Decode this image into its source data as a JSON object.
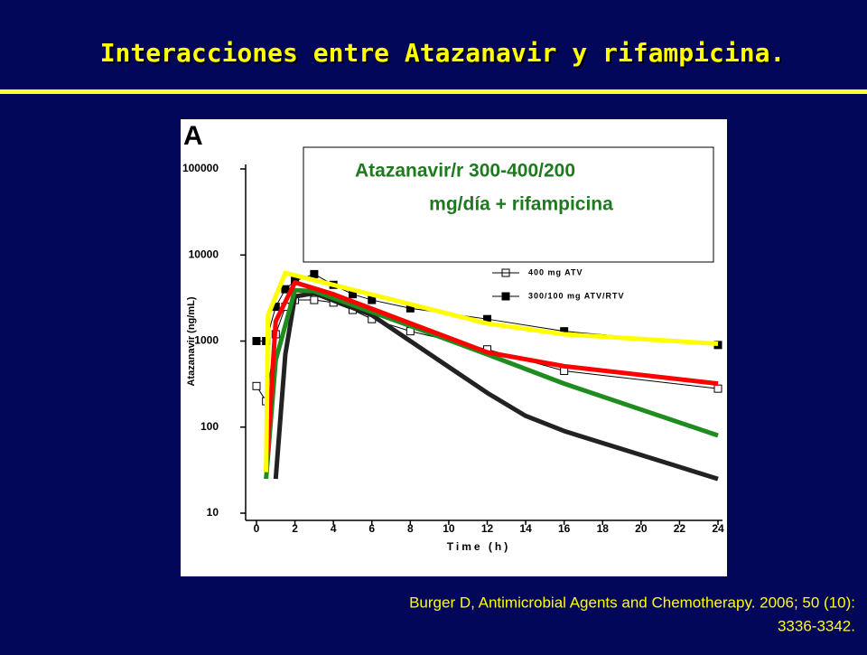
{
  "chart_data": {
    "type": "line",
    "title": "Interacciones entre Atazanavir  y rifampicina.",
    "panel_label": "A",
    "annotation": [
      "Atazanavir/r 300-400/200",
      "mg/día + rifampicina"
    ],
    "source": [
      "Burger D, Antimicrobial Agents and Chemotherapy. 2006; 50 (10):",
      "3336-3342."
    ],
    "x_label": "Time (h)",
    "y_label": "Atazanavir (ng/mL)",
    "log_y": true,
    "xlim": [
      0,
      24
    ],
    "xticks": [
      0,
      2,
      4,
      6,
      8,
      10,
      12,
      14,
      16,
      18,
      20,
      22,
      24
    ],
    "ylim": [
      10,
      100000
    ],
    "yticks": [
      10,
      100,
      1000,
      10000,
      100000
    ],
    "series": [
      {
        "name": "400 mg ATV",
        "marker": "open-square",
        "color": "#000000",
        "x": [
          0,
          0.5,
          1,
          1.5,
          2,
          3,
          4,
          5,
          6,
          8,
          12,
          16,
          24
        ],
        "values": [
          300,
          200,
          1200,
          2500,
          3000,
          3000,
          2800,
          2300,
          1800,
          1300,
          800,
          450,
          280
        ]
      },
      {
        "name": "300/100 mg ATV/RTV",
        "marker": "filled-square",
        "color": "#000000",
        "x": [
          0,
          0.5,
          1,
          1.5,
          2,
          3,
          4,
          5,
          6,
          8,
          12,
          16,
          24
        ],
        "values": [
          1000,
          1000,
          2500,
          4000,
          5000,
          6000,
          4500,
          3500,
          3000,
          2400,
          1800,
          1300,
          900
        ]
      },
      {
        "color": "#222222",
        "x": [
          1,
          1.5,
          2,
          3,
          6,
          8,
          12,
          14,
          16,
          24
        ],
        "values": [
          25,
          700,
          3300,
          3600,
          2000,
          1000,
          250,
          135,
          90,
          25
        ]
      },
      {
        "color": "#1e8c1e",
        "x": [
          0.5,
          1,
          2,
          3,
          8,
          12,
          16,
          24
        ],
        "values": [
          25,
          600,
          3900,
          3800,
          1500,
          700,
          320,
          80
        ]
      },
      {
        "color": "#ff0000",
        "x": [
          0.5,
          1,
          2,
          4,
          12,
          16,
          24
        ],
        "values": [
          30,
          1700,
          4800,
          3500,
          740,
          510,
          320
        ]
      },
      {
        "color": "#ffff00",
        "x": [
          0.5,
          0.6,
          1.5,
          12,
          16,
          24
        ],
        "values": [
          30,
          2000,
          6200,
          1600,
          1200,
          930
        ]
      }
    ]
  }
}
